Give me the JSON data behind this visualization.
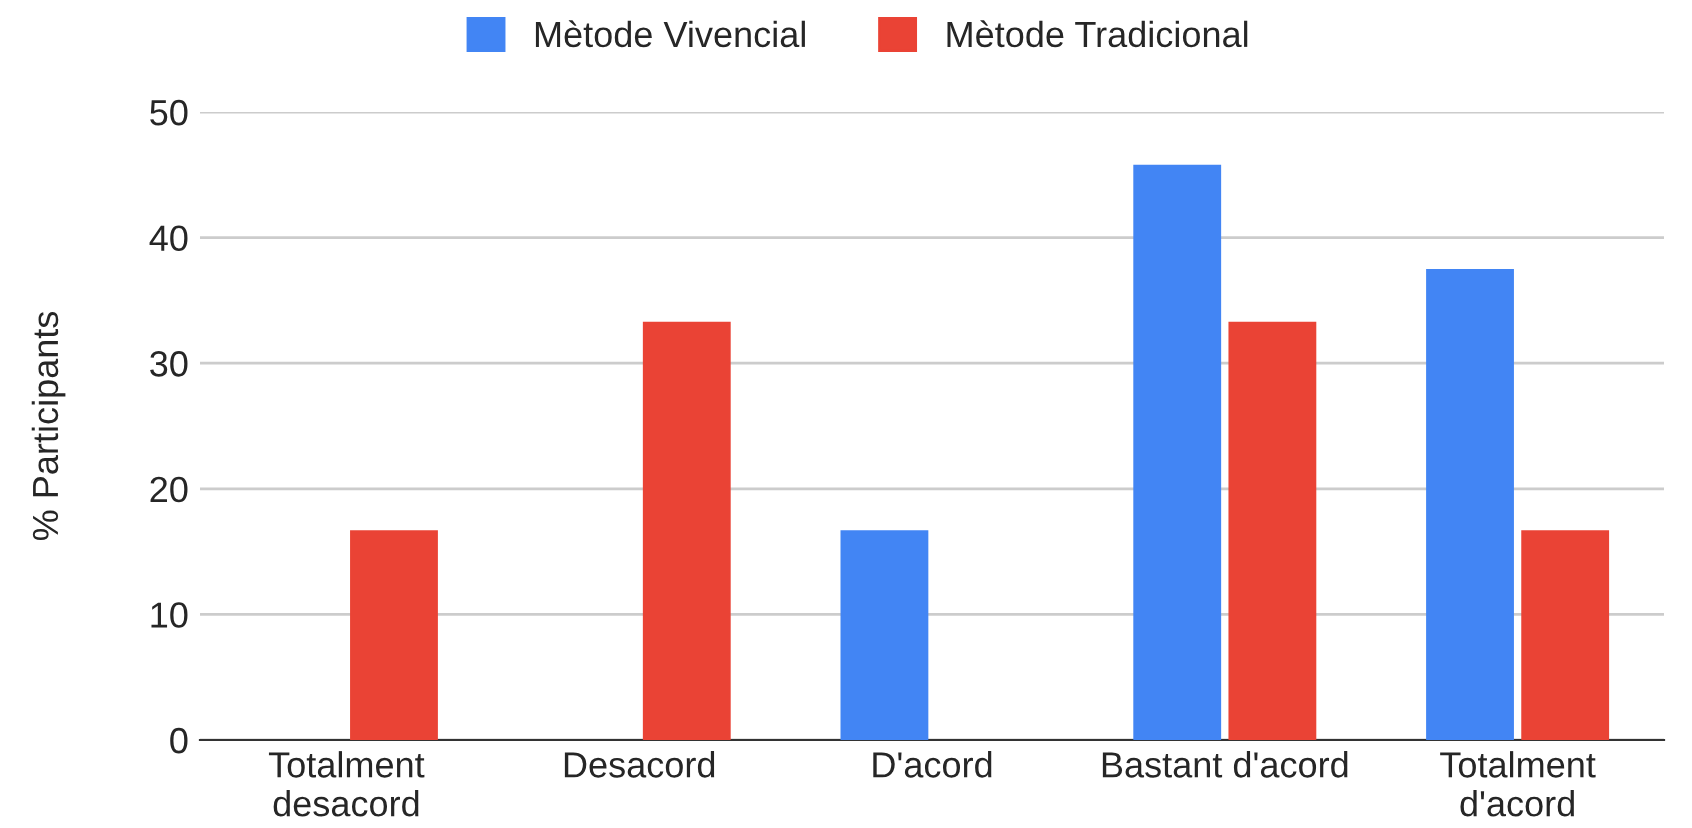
{
  "chart_data": {
    "type": "bar",
    "ylabel": "% Participants",
    "categories": [
      "Totalment\ndesacord",
      "Desacord",
      "D'acord",
      "Bastant d'acord",
      "Totalment\nd'acord"
    ],
    "series": [
      {
        "name": "Mètode Vivencial",
        "color": "#4285f4",
        "values": [
          0,
          0,
          16.7,
          45.8,
          37.5
        ]
      },
      {
        "name": "Mètode Tradicional",
        "color": "#ea4335",
        "values": [
          16.7,
          33.3,
          0,
          33.3,
          16.7
        ]
      }
    ],
    "ylim": [
      0,
      50
    ],
    "yticks": [
      0,
      10,
      20,
      30,
      40,
      50
    ],
    "grid": "y",
    "legend": "top"
  }
}
